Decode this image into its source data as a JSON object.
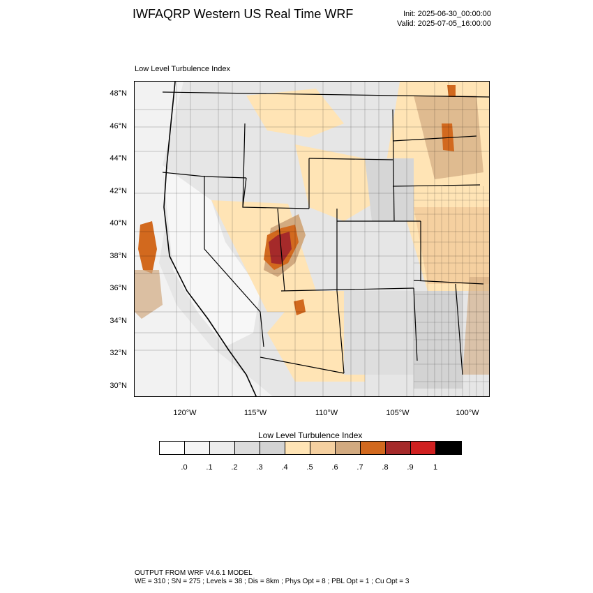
{
  "title": "IWFAQRP Western US Real Time WRF",
  "init": "Init: 2025-06-30_00:00:00",
  "valid": "Valid: 2025-07-05_16:00:00",
  "subtitle": "Low Level Turbulence Index",
  "map": {
    "lat_labels": [
      "48°N",
      "46°N",
      "44°N",
      "42°N",
      "40°N",
      "38°N",
      "36°N",
      "34°N",
      "32°N",
      "30°N"
    ],
    "lon_labels": [
      "120°W",
      "115°W",
      "110°W",
      "105°W",
      "100°W"
    ]
  },
  "colorbar": {
    "title": "Low Level Turbulence Index",
    "colors": [
      "#ffffff",
      "#f5f5f5",
      "#ececec",
      "#dcdcdc",
      "#d3d3d3",
      "#ffe4b5",
      "#f5d0a0",
      "#d2aa80",
      "#d2691e",
      "#a52a2a",
      "#d02020",
      "#000000"
    ],
    "labels": [
      ".0",
      ".1",
      ".2",
      ".3",
      ".4",
      ".5",
      ".6",
      ".7",
      ".8",
      ".9",
      "1"
    ]
  },
  "footer": {
    "line1": "OUTPUT FROM WRF V4.6.1 MODEL",
    "line2": "WE = 310 ; SN = 275 ; Levels = 38 ; Dis = 8km ; Phys Opt = 8 ; PBL Opt = 1 ; Cu Opt = 3"
  }
}
